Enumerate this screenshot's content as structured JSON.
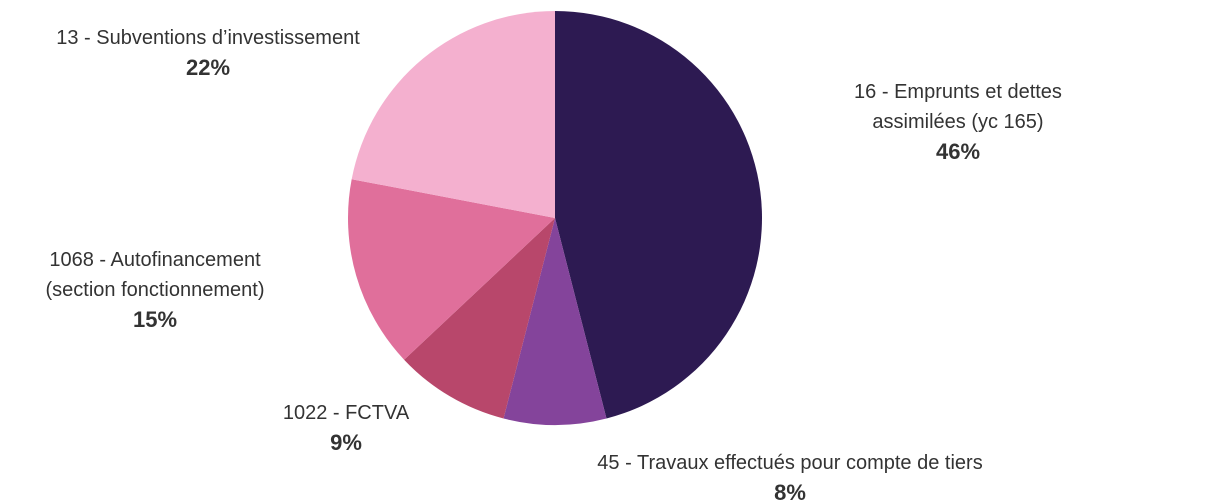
{
  "chart_data": {
    "type": "pie",
    "categories": [
      "16 - Emprunts et dettes assimilées (yc 165)",
      "45 - Travaux effectués pour compte de tiers",
      "1022 - FCTVA",
      "1068 - Autofinancement (section fonctionnement)",
      "13 - Subventions d’investissement"
    ],
    "values": [
      46,
      8,
      9,
      15,
      22
    ],
    "value_labels": [
      "46%",
      "8%",
      "9%",
      "15%",
      "22%"
    ],
    "colors": [
      "#2d1a52",
      "#84449b",
      "#b8476b",
      "#e06f9b",
      "#f4b0cf"
    ]
  }
}
